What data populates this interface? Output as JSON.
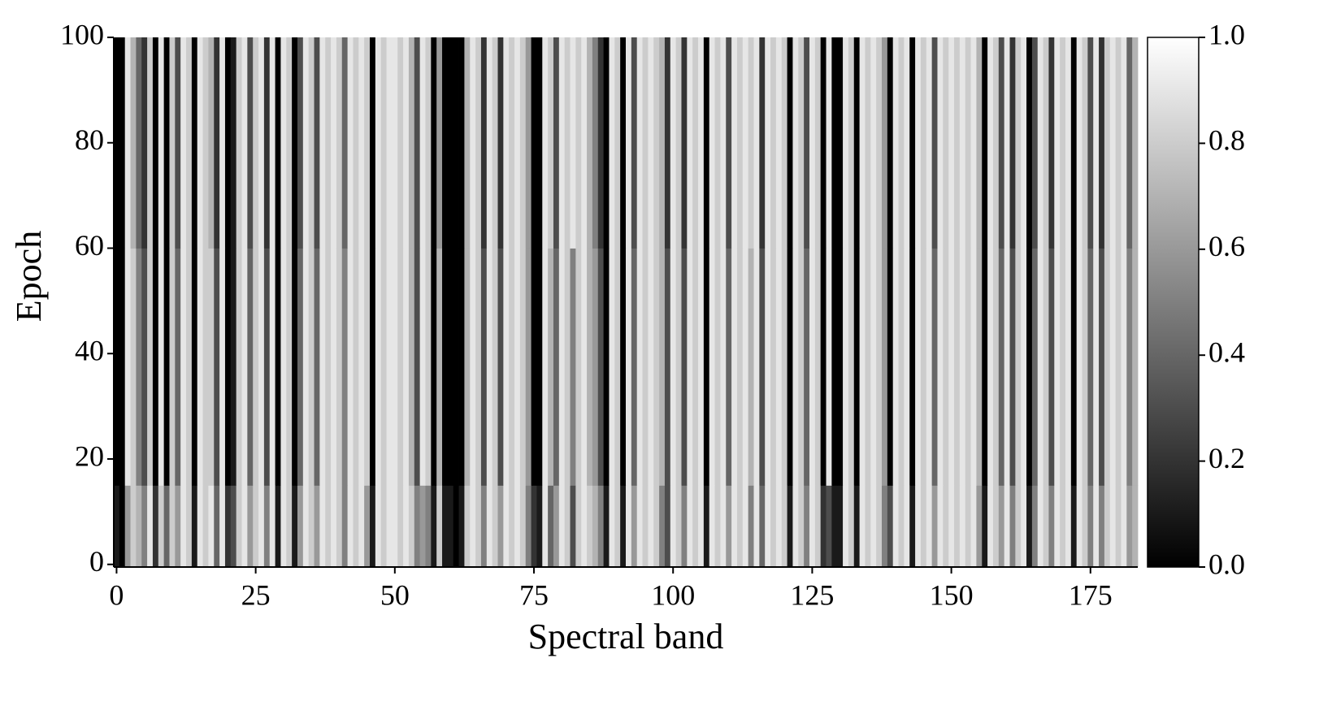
{
  "chart_data": {
    "type": "heatmap",
    "x_label": "Spectral band",
    "y_label": "Epoch",
    "colormap": "gray",
    "x": [
      0,
      1,
      2,
      3,
      4,
      5,
      6,
      7,
      8,
      9,
      10,
      11,
      12,
      13,
      14,
      15,
      16,
      17,
      18,
      19,
      20,
      21,
      22,
      23,
      24,
      25,
      26,
      27,
      28,
      29,
      30,
      31,
      32,
      33,
      34,
      35,
      36,
      37,
      38,
      39,
      40,
      41,
      42,
      43,
      44,
      45,
      46,
      47,
      48,
      49,
      50,
      51,
      52,
      53,
      54,
      55,
      56,
      57,
      58,
      59,
      60,
      61,
      62,
      63,
      64,
      65,
      66,
      67,
      68,
      69,
      70,
      71,
      72,
      73,
      74,
      75,
      76,
      77,
      78,
      79,
      80,
      81,
      82,
      83,
      84,
      85,
      86,
      87,
      88,
      89,
      90,
      91,
      92,
      93,
      94,
      95,
      96,
      97,
      98,
      99,
      100,
      101,
      102,
      103,
      104,
      105,
      106,
      107,
      108,
      109,
      110,
      111,
      112,
      113,
      114,
      115,
      116,
      117,
      118,
      119,
      120,
      121,
      122,
      123,
      124,
      125,
      126,
      127,
      128,
      129,
      130,
      131,
      132,
      133,
      134,
      135,
      136,
      137,
      138,
      139,
      140,
      141,
      142,
      143,
      144,
      145,
      146,
      147,
      148,
      149,
      150,
      151,
      152,
      153,
      154,
      155,
      156,
      157,
      158,
      159,
      160,
      161,
      162,
      163,
      164,
      165,
      166,
      167,
      168,
      169,
      170,
      171,
      172,
      173,
      174,
      175,
      176,
      177,
      178,
      179,
      180,
      181,
      182,
      183
    ],
    "y_bins": [
      -0.5,
      15,
      60,
      100
    ],
    "z": [
      [
        0.1,
        0.0,
        0.6,
        0.8,
        0.7,
        0.5,
        0.9,
        0.2,
        0.8,
        0.4,
        0.8,
        0.6,
        0.9,
        0.8,
        0.1,
        0.9,
        0.8,
        0.9,
        0.4,
        0.9,
        0.2,
        0.3,
        0.8,
        0.9,
        0.6,
        0.8,
        0.9,
        0.5,
        0.9,
        0.1,
        0.9,
        0.8,
        0.1,
        0.6,
        0.9,
        0.8,
        0.6,
        0.9,
        0.8,
        0.9,
        0.8,
        0.5,
        0.9,
        0.8,
        0.9,
        0.6,
        0.1,
        0.9,
        0.8,
        0.9,
        0.9,
        0.8,
        0.9,
        0.8,
        0.5,
        0.6,
        0.5,
        0.1,
        0.8,
        0.1,
        0.1,
        0.0,
        0.1,
        0.8,
        0.9,
        0.8,
        0.5,
        0.9,
        0.8,
        0.6,
        0.9,
        0.8,
        0.9,
        0.8,
        0.5,
        0.2,
        0.1,
        0.9,
        0.4,
        0.6,
        0.9,
        0.8,
        0.3,
        0.8,
        0.9,
        0.8,
        0.7,
        0.5,
        0.1,
        0.9,
        0.8,
        0.1,
        0.9,
        0.6,
        0.9,
        0.8,
        0.9,
        0.8,
        0.5,
        0.3,
        0.9,
        0.8,
        0.5,
        0.9,
        0.8,
        0.9,
        0.1,
        0.9,
        0.8,
        0.9,
        0.6,
        0.9,
        0.8,
        0.9,
        0.5,
        0.9,
        0.4,
        0.9,
        0.8,
        0.9,
        0.8,
        0.1,
        0.9,
        0.8,
        0.5,
        0.9,
        0.8,
        0.2,
        0.3,
        0.1,
        0.1,
        0.9,
        0.8,
        0.1,
        0.9,
        0.8,
        0.9,
        0.8,
        0.5,
        0.3,
        0.9,
        0.8,
        0.9,
        0.1,
        0.9,
        0.8,
        0.9,
        0.6,
        0.9,
        0.8,
        0.9,
        0.8,
        0.9,
        0.8,
        0.9,
        0.6,
        0.1,
        0.9,
        0.8,
        0.6,
        0.9,
        0.5,
        0.8,
        0.9,
        0.1,
        0.5,
        0.9,
        0.8,
        0.5,
        0.9,
        0.8,
        0.9,
        0.1,
        0.9,
        0.8,
        0.5,
        0.9,
        0.5,
        0.8,
        0.9,
        0.8,
        0.9,
        0.6,
        0.7
      ],
      [
        0.0,
        0.0,
        0.9,
        0.8,
        0.5,
        0.3,
        0.8,
        0.0,
        0.9,
        0.0,
        0.8,
        0.4,
        0.9,
        0.8,
        0.0,
        0.9,
        0.8,
        0.8,
        0.3,
        0.9,
        0.0,
        0.1,
        0.8,
        0.9,
        0.4,
        0.8,
        0.9,
        0.3,
        0.9,
        0.0,
        0.9,
        0.8,
        0.0,
        0.4,
        0.9,
        0.8,
        0.4,
        0.9,
        0.8,
        0.9,
        0.8,
        0.5,
        0.9,
        0.8,
        0.9,
        0.8,
        0.0,
        0.9,
        0.8,
        0.9,
        0.9,
        0.8,
        0.9,
        0.7,
        0.3,
        0.9,
        0.8,
        0.0,
        0.7,
        0.0,
        0.0,
        0.0,
        0.0,
        0.7,
        0.9,
        0.8,
        0.3,
        0.9,
        0.8,
        0.3,
        0.9,
        0.8,
        0.9,
        0.8,
        0.6,
        0.0,
        0.0,
        0.9,
        0.7,
        0.4,
        0.9,
        0.8,
        0.5,
        0.8,
        0.9,
        0.7,
        0.6,
        0.3,
        0.0,
        0.9,
        0.8,
        0.0,
        0.9,
        0.4,
        0.9,
        0.8,
        0.9,
        0.8,
        0.7,
        0.3,
        0.9,
        0.8,
        0.3,
        0.9,
        0.8,
        0.9,
        0.0,
        0.9,
        0.8,
        0.9,
        0.4,
        0.9,
        0.8,
        0.9,
        0.7,
        0.9,
        0.3,
        0.9,
        0.8,
        0.9,
        0.8,
        0.0,
        0.9,
        0.8,
        0.4,
        0.9,
        0.8,
        0.0,
        0.9,
        0.0,
        0.0,
        0.9,
        0.8,
        0.0,
        0.9,
        0.8,
        0.9,
        0.8,
        0.6,
        0.0,
        0.9,
        0.8,
        0.9,
        0.0,
        0.9,
        0.8,
        0.9,
        0.4,
        0.9,
        0.8,
        0.9,
        0.8,
        0.9,
        0.8,
        0.9,
        0.7,
        0.0,
        0.9,
        0.8,
        0.4,
        0.9,
        0.3,
        0.8,
        0.9,
        0.0,
        0.4,
        0.9,
        0.8,
        0.3,
        0.9,
        0.8,
        0.9,
        0.0,
        0.9,
        0.8,
        0.4,
        0.9,
        0.3,
        0.8,
        0.9,
        0.8,
        0.9,
        0.5,
        0.7
      ],
      [
        0.0,
        0.0,
        0.9,
        0.7,
        0.4,
        0.2,
        0.8,
        0.0,
        0.9,
        0.0,
        0.8,
        0.3,
        0.9,
        0.8,
        0.0,
        0.9,
        0.8,
        0.7,
        0.2,
        0.9,
        0.0,
        0.1,
        0.8,
        0.9,
        0.3,
        0.8,
        0.9,
        0.2,
        0.9,
        0.0,
        0.9,
        0.8,
        0.0,
        0.3,
        0.9,
        0.8,
        0.3,
        0.9,
        0.8,
        0.9,
        0.8,
        0.4,
        0.9,
        0.8,
        0.9,
        0.8,
        0.0,
        0.9,
        0.8,
        0.9,
        0.9,
        0.8,
        0.9,
        0.7,
        0.3,
        0.9,
        0.8,
        0.0,
        0.6,
        0.0,
        0.0,
        0.0,
        0.0,
        0.7,
        0.9,
        0.8,
        0.2,
        0.9,
        0.8,
        0.2,
        0.9,
        0.8,
        0.9,
        0.8,
        0.6,
        0.0,
        0.0,
        0.9,
        0.8,
        0.3,
        0.9,
        0.8,
        0.9,
        0.8,
        0.9,
        0.7,
        0.5,
        0.2,
        0.0,
        0.9,
        0.8,
        0.0,
        0.9,
        0.3,
        0.9,
        0.8,
        0.9,
        0.8,
        0.7,
        0.2,
        0.9,
        0.8,
        0.2,
        0.9,
        0.8,
        0.9,
        0.0,
        0.9,
        0.8,
        0.9,
        0.3,
        0.9,
        0.8,
        0.9,
        0.8,
        0.9,
        0.2,
        0.9,
        0.8,
        0.9,
        0.8,
        0.0,
        0.9,
        0.8,
        0.3,
        0.9,
        0.8,
        0.0,
        0.9,
        0.0,
        0.0,
        0.9,
        0.8,
        0.0,
        0.9,
        0.8,
        0.9,
        0.8,
        0.6,
        0.0,
        0.9,
        0.8,
        0.9,
        0.0,
        0.9,
        0.8,
        0.9,
        0.3,
        0.9,
        0.8,
        0.9,
        0.8,
        0.9,
        0.8,
        0.9,
        0.7,
        0.0,
        0.9,
        0.8,
        0.3,
        0.9,
        0.2,
        0.8,
        0.9,
        0.0,
        0.3,
        0.9,
        0.8,
        0.2,
        0.9,
        0.8,
        0.9,
        0.0,
        0.9,
        0.8,
        0.3,
        0.9,
        0.2,
        0.8,
        0.9,
        0.8,
        0.9,
        0.4,
        0.7
      ]
    ],
    "xlim": [
      -0.5,
      183.5
    ],
    "xticks": [
      0,
      25,
      50,
      75,
      100,
      125,
      150,
      175
    ],
    "ylim": [
      -0.5,
      100
    ],
    "yticks": [
      0,
      20,
      40,
      60,
      80,
      100
    ],
    "clim": [
      0,
      1
    ],
    "cticks": [
      {
        "value": 0,
        "label": "0.0"
      },
      {
        "value": 0.2,
        "label": "0.2"
      },
      {
        "value": 0.4,
        "label": "0.4"
      },
      {
        "value": 0.6,
        "label": "0.6"
      },
      {
        "value": 0.8,
        "label": "0.8"
      },
      {
        "value": 1,
        "label": "1.0"
      }
    ]
  }
}
